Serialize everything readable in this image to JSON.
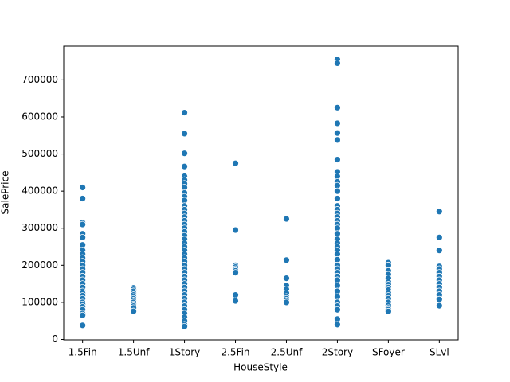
{
  "chart_data": {
    "type": "scatter",
    "xlabel": "HouseStyle",
    "ylabel": "SalePrice",
    "color": "#1f77b4",
    "categories": [
      "1.5Fin",
      "1.5Unf",
      "1Story",
      "2.5Fin",
      "2.5Unf",
      "2Story",
      "SFoyer",
      "SLvl"
    ],
    "values": [
      [
        410000,
        380000,
        315000,
        310000,
        285000,
        275000,
        255000,
        240000,
        230000,
        220000,
        210000,
        200000,
        190000,
        180000,
        170000,
        160000,
        150000,
        140000,
        130000,
        125000,
        118000,
        110000,
        100000,
        95000,
        88000,
        80000,
        70000,
        65000,
        37900
      ],
      [
        139000,
        135000,
        130000,
        125000,
        120000,
        115000,
        110000,
        105000,
        100000,
        95000,
        90000,
        85000,
        76000
      ],
      [
        611657,
        555000,
        501837,
        466500,
        440000,
        430000,
        420000,
        410000,
        395000,
        385000,
        375000,
        360000,
        350000,
        340000,
        330000,
        320000,
        310000,
        300000,
        290000,
        280000,
        270000,
        260000,
        250000,
        240000,
        230000,
        220000,
        210000,
        200000,
        190000,
        180000,
        170000,
        160000,
        150000,
        140000,
        130000,
        120000,
        110000,
        100000,
        90000,
        80000,
        70000,
        60000,
        50000,
        40000,
        34900
      ],
      [
        475000,
        295000,
        200000,
        195000,
        190000,
        185000,
        180000,
        120000,
        104000
      ],
      [
        325000,
        214000,
        165000,
        145000,
        135000,
        125000,
        115000,
        110000,
        105000,
        100000
      ],
      [
        755000,
        745000,
        625000,
        582933,
        556581,
        538000,
        485000,
        451950,
        440000,
        425000,
        415000,
        400000,
        380000,
        360000,
        350000,
        340000,
        330000,
        320000,
        310000,
        300000,
        285000,
        270000,
        260000,
        250000,
        240000,
        230000,
        215000,
        200000,
        190000,
        180000,
        170000,
        160000,
        145000,
        130000,
        115000,
        100000,
        90000,
        80000,
        55000,
        40000
      ],
      [
        206900,
        200000,
        185000,
        175000,
        165000,
        155000,
        148000,
        140000,
        133000,
        125000,
        118000,
        110000,
        100000,
        92000,
        85000,
        80000,
        75500
      ],
      [
        345000,
        275000,
        240000,
        197000,
        190000,
        180000,
        170000,
        160000,
        150000,
        140000,
        130000,
        120000,
        108000,
        91000
      ]
    ],
    "ylim": [
      -1100,
      791000
    ],
    "yticks": [
      0,
      100000,
      200000,
      300000,
      400000,
      500000,
      600000,
      700000
    ]
  }
}
